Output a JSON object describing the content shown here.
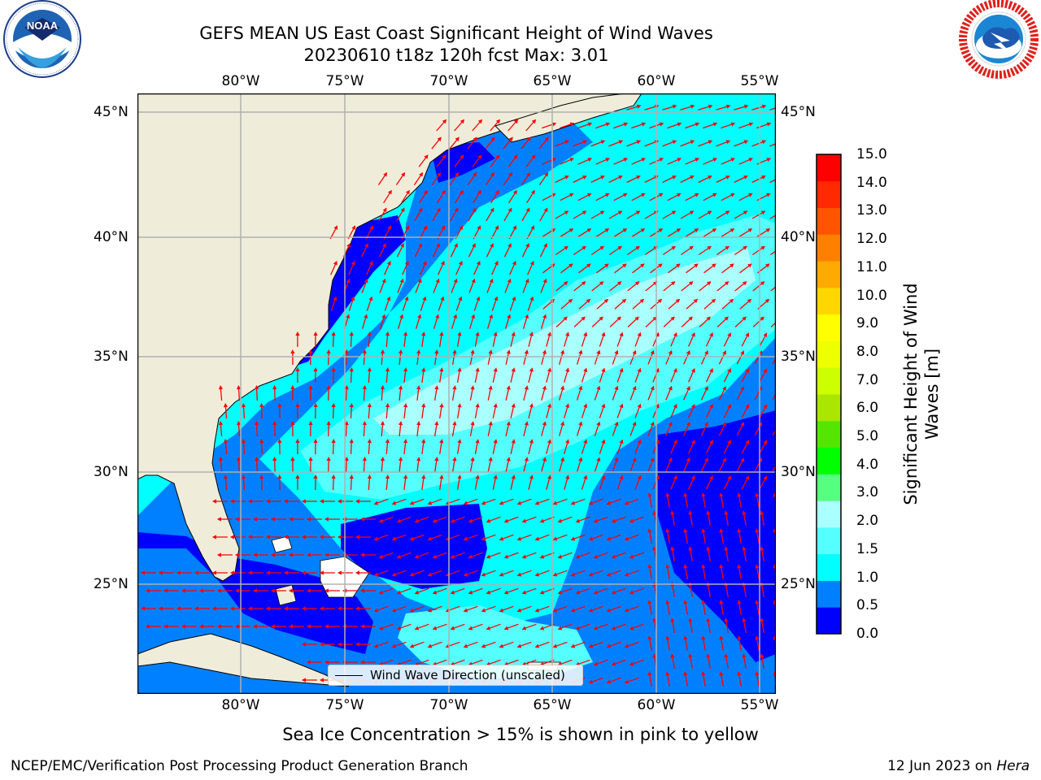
{
  "header": {
    "title_line1": "GEFS MEAN US East Coast Significant Height of Wind Waves",
    "title_line2": "20230610 t18z 120h fcst   Max: 3.01"
  },
  "logos": {
    "noaa": {
      "text": "NOAA",
      "ring_text": "NATIONAL OCEANIC AND ATMOSPHERIC ADMINISTRATION · U.S. DEPARTMENT OF COMMERCE"
    },
    "nws": {
      "ring_text": "NATIONAL WEATHER SERVICE"
    }
  },
  "map": {
    "lon_labels": [
      "80°W",
      "75°W",
      "70°W",
      "65°W",
      "60°W",
      "55°W"
    ],
    "lat_labels": [
      "45°N",
      "40°N",
      "35°N",
      "30°N",
      "25°N"
    ],
    "land_color": "#efedda",
    "arrow_color": "#ff0000",
    "legend_text": "Wind Wave Direction (unscaled)",
    "max_value": 3.01
  },
  "colorbar": {
    "label": "Significant Height of Wind Waves [m]",
    "ticks": [
      "15.0",
      "14.0",
      "13.0",
      "12.0",
      "11.0",
      "10.0",
      "9.0",
      "8.0",
      "7.0",
      "6.0",
      "5.0",
      "4.0",
      "3.0",
      "2.0",
      "1.5",
      "1.0",
      "0.5",
      "0.0"
    ],
    "colors_bottom_to_top": [
      "#0000ff",
      "#0080ff",
      "#00ffff",
      "#55ffff",
      "#aaffff",
      "#55ff80",
      "#00ff00",
      "#55e600",
      "#aae600",
      "#ccff00",
      "#eeff00",
      "#ffff00",
      "#ffd700",
      "#ffaa00",
      "#ff8000",
      "#ff5500",
      "#ff2a00",
      "#ff0000"
    ]
  },
  "caption": "Sea Ice Concentration > 15% is shown in pink to yellow",
  "footer": {
    "left": "NCEP/EMC/Verification Post Processing Product Generation Branch",
    "right_date": "12 Jun 2023 on ",
    "right_host": "Hera"
  }
}
